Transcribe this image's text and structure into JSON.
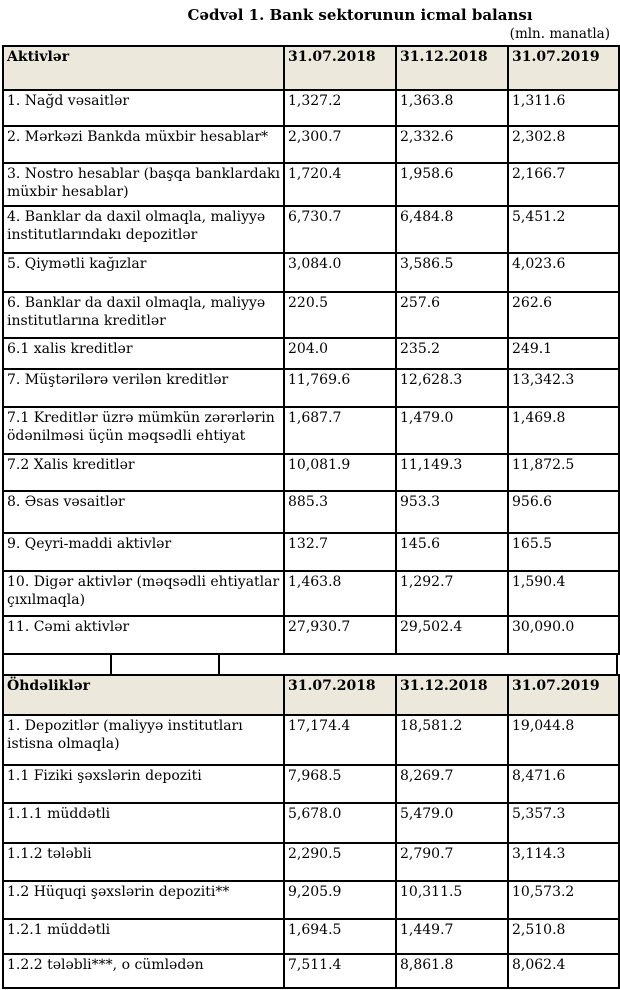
{
  "title": "Cədvəl 1. Bank sektorunun icmal balansı",
  "unit_note": "(mln. manatla)",
  "colors": {
    "header_bg": "#ece9dc",
    "border": "#000000",
    "text": "#000000"
  },
  "tables": [
    {
      "name": "assets",
      "header": {
        "label": "Aktivlər",
        "dates": [
          "31.07.2018",
          "31.12.2018",
          "31.07.2019"
        ]
      },
      "rows": [
        {
          "label": "1. Nağd vəsaitlər",
          "values": [
            "1,327.2",
            "1,363.8",
            "1,311.6"
          ]
        },
        {
          "label": "2. Mərkəzi Bankda müxbir hesablar*",
          "values": [
            "2,300.7",
            "2,332.6",
            "2,302.8"
          ]
        },
        {
          "label": "3. Nostro hesablar (başqa banklardakı müxbir hesablar)",
          "values": [
            "1,720.4",
            "1,958.6",
            "2,166.7"
          ]
        },
        {
          "label": "4. Banklar da daxil olmaqla, maliyyə institutlarındakı depozitlər",
          "values": [
            "6,730.7",
            "6,484.8",
            "5,451.2"
          ]
        },
        {
          "label": "5. Qiymətli kağızlar",
          "values": [
            "3,084.0",
            "3,586.5",
            "4,023.6"
          ]
        },
        {
          "label": "6. Banklar da daxil olmaqla, maliyyə institutlarına kreditlər",
          "values": [
            "220.5",
            "257.6",
            "262.6"
          ]
        },
        {
          "label": "6.1 xalis kreditlər",
          "values": [
            "204.0",
            "235.2",
            "249.1"
          ]
        },
        {
          "label": "7. Müştərilərə verilən kreditlər",
          "values": [
            "11,769.6",
            "12,628.3",
            "13,342.3"
          ]
        },
        {
          "label": "7.1 Kreditlər üzrə mümkün zərərlərin ödənilməsi üçün məqsədli ehtiyat",
          "values": [
            "1,687.7",
            "1,479.0",
            "1,469.8"
          ]
        },
        {
          "label": "7.2 Xalis kreditlər",
          "values": [
            "10,081.9",
            "11,149.3",
            "11,872.5"
          ]
        },
        {
          "label": "8. Əsas vəsaitlər",
          "values": [
            "885.3",
            "953.3",
            "956.6"
          ]
        },
        {
          "label": "9. Qeyri-maddi aktivlər",
          "values": [
            "132.7",
            "145.6",
            "165.5"
          ]
        },
        {
          "label": "10. Digər aktivlər (məqsədli ehtiyatlar çıxılmaqla)",
          "values": [
            "1,463.8",
            "1,292.7",
            "1,590.4"
          ]
        },
        {
          "label": "11. Cəmi aktivlər",
          "values": [
            "27,930.7",
            "29,502.4",
            "30,090.0"
          ]
        }
      ]
    },
    {
      "name": "liabilities",
      "header": {
        "label": "Öhdəliklər",
        "dates": [
          "31.07.2018",
          "31.12.2018",
          "31.07.2019"
        ]
      },
      "rows": [
        {
          "label": "1. Depozitlər (maliyyə institutları istisna olmaqla)",
          "values": [
            "17,174.4",
            "18,581.2",
            "19,044.8"
          ]
        },
        {
          "label": "1.1 Fiziki şəxslərin depoziti",
          "values": [
            "7,968.5",
            "8,269.7",
            "8,471.6"
          ]
        },
        {
          "label": "1.1.1 müddətli",
          "values": [
            "5,678.0",
            "5,479.0",
            "5,357.3"
          ]
        },
        {
          "label": "1.1.2 tələbli",
          "values": [
            "2,290.5",
            "2,790.7",
            "3,114.3"
          ]
        },
        {
          "label": "1.2 Hüquqi şəxslərin depoziti**",
          "values": [
            "9,205.9",
            "10,311.5",
            "10,573.2"
          ]
        },
        {
          "label": "1.2.1 müddətli",
          "values": [
            "1,694.5",
            "1,449.7",
            "2,510.8"
          ]
        },
        {
          "label": "1.2.2 tələbli***, o cümlədən",
          "values": [
            "7,511.4",
            "8,861.8",
            "8,062.4"
          ]
        }
      ]
    }
  ]
}
